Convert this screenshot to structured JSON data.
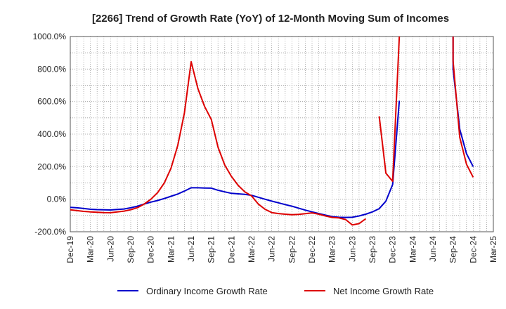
{
  "chart_data": {
    "type": "line",
    "title": "[2266]  Trend of Growth Rate (YoY) of 12-Month Moving Sum of Incomes",
    "xlabel": "",
    "ylabel": "",
    "ylim": [
      -200,
      1000
    ],
    "yticks": [
      -200,
      0,
      200,
      400,
      600,
      800,
      1000
    ],
    "ytick_labels": [
      "-200.0%",
      "0.0%",
      "200.0%",
      "400.0%",
      "600.0%",
      "800.0%",
      "1000.0%"
    ],
    "xticks": [
      "Dec-19",
      "Mar-20",
      "Jun-20",
      "Sep-20",
      "Dec-20",
      "Mar-21",
      "Jun-21",
      "Sep-21",
      "Dec-21",
      "Mar-22",
      "Jun-22",
      "Sep-22",
      "Dec-22",
      "Mar-23",
      "Jun-23",
      "Sep-23",
      "Dec-23",
      "Mar-24",
      "Jun-24",
      "Sep-24",
      "Dec-24",
      "Mar-25"
    ],
    "grid": true,
    "legend_position": "bottom",
    "series": [
      {
        "name": "Ordinary Income Growth Rate",
        "color": "#0000cc",
        "points": [
          [
            "Dec-19",
            -50
          ],
          [
            "Jan-20",
            -53
          ],
          [
            "Feb-20",
            -57
          ],
          [
            "Mar-20",
            -62
          ],
          [
            "Apr-20",
            -64
          ],
          [
            "May-20",
            -65
          ],
          [
            "Jun-20",
            -66
          ],
          [
            "Jul-20",
            -63
          ],
          [
            "Aug-20",
            -60
          ],
          [
            "Sep-20",
            -53
          ],
          [
            "Oct-20",
            -43
          ],
          [
            "Nov-20",
            -30
          ],
          [
            "Dec-20",
            -18
          ],
          [
            "Jan-21",
            -8
          ],
          [
            "Feb-21",
            4
          ],
          [
            "Mar-21",
            18
          ],
          [
            "Apr-21",
            32
          ],
          [
            "May-21",
            50
          ],
          [
            "Jun-21",
            70
          ],
          [
            "Jul-21",
            70
          ],
          [
            "Aug-21",
            69
          ],
          [
            "Sep-21",
            68
          ],
          [
            "Oct-21",
            55
          ],
          [
            "Nov-21",
            45
          ],
          [
            "Dec-21",
            36
          ],
          [
            "Jan-22",
            33
          ],
          [
            "Feb-22",
            30
          ],
          [
            "Mar-22",
            24
          ],
          [
            "Apr-22",
            12
          ],
          [
            "May-22",
            0
          ],
          [
            "Jun-22",
            -12
          ],
          [
            "Jul-22",
            -22
          ],
          [
            "Aug-22",
            -33
          ],
          [
            "Sep-22",
            -43
          ],
          [
            "Oct-22",
            -55
          ],
          [
            "Nov-22",
            -67
          ],
          [
            "Dec-22",
            -78
          ],
          [
            "Jan-23",
            -88
          ],
          [
            "Feb-23",
            -98
          ],
          [
            "Mar-23",
            -107
          ],
          [
            "Apr-23",
            -111
          ],
          [
            "May-23",
            -112
          ],
          [
            "Jun-23",
            -111
          ],
          [
            "Jul-23",
            -103
          ],
          [
            "Aug-23",
            -92
          ],
          [
            "Sep-23",
            -78
          ],
          [
            "Oct-23",
            -58
          ],
          [
            "Nov-23",
            -12
          ],
          [
            "Dec-23",
            90
          ],
          [
            "Jan-24",
            605
          ],
          null,
          [
            "Sep-24",
            1000
          ],
          [
            "Sep-24",
            800
          ],
          [
            "Oct-24",
            430
          ],
          [
            "Nov-24",
            280
          ],
          [
            "Dec-24",
            200
          ]
        ]
      },
      {
        "name": "Net Income Growth Rate",
        "color": "#dd0000",
        "points": [
          [
            "Dec-19",
            -65
          ],
          [
            "Jan-20",
            -70
          ],
          [
            "Feb-20",
            -75
          ],
          [
            "Mar-20",
            -78
          ],
          [
            "Apr-20",
            -80
          ],
          [
            "May-20",
            -82
          ],
          [
            "Jun-20",
            -83
          ],
          [
            "Jul-20",
            -78
          ],
          [
            "Aug-20",
            -73
          ],
          [
            "Sep-20",
            -65
          ],
          [
            "Oct-20",
            -52
          ],
          [
            "Nov-20",
            -30
          ],
          [
            "Dec-20",
            0
          ],
          [
            "Jan-21",
            40
          ],
          [
            "Feb-21",
            100
          ],
          [
            "Mar-21",
            190
          ],
          [
            "Apr-21",
            330
          ],
          [
            "May-21",
            530
          ],
          [
            "Jun-21",
            845
          ],
          [
            "Jul-21",
            680
          ],
          [
            "Aug-21",
            570
          ],
          [
            "Sep-21",
            490
          ],
          [
            "Oct-21",
            320
          ],
          [
            "Nov-21",
            210
          ],
          [
            "Dec-21",
            140
          ],
          [
            "Jan-22",
            85
          ],
          [
            "Feb-22",
            45
          ],
          [
            "Mar-22",
            20
          ],
          [
            "Apr-22",
            -30
          ],
          [
            "May-22",
            -62
          ],
          [
            "Jun-22",
            -82
          ],
          [
            "Jul-22",
            -88
          ],
          [
            "Aug-22",
            -92
          ],
          [
            "Sep-22",
            -95
          ],
          [
            "Oct-22",
            -93
          ],
          [
            "Nov-22",
            -89
          ],
          [
            "Dec-22",
            -84
          ],
          [
            "Jan-23",
            -92
          ],
          [
            "Feb-23",
            -103
          ],
          [
            "Mar-23",
            -112
          ],
          [
            "Apr-23",
            -115
          ],
          [
            "May-23",
            -125
          ],
          [
            "Jun-23",
            -158
          ],
          [
            "Jul-23",
            -150
          ],
          [
            "Aug-23",
            -120
          ],
          null,
          [
            "Oct-23",
            510
          ],
          [
            "Nov-23",
            160
          ],
          [
            "Dec-23",
            110
          ],
          [
            "Jan-24",
            1000
          ],
          null,
          [
            "Sep-24",
            1000
          ],
          [
            "Sep-24",
            850
          ],
          [
            "Oct-24",
            380
          ],
          [
            "Nov-24",
            215
          ],
          [
            "Dec-24",
            135
          ]
        ]
      }
    ]
  }
}
